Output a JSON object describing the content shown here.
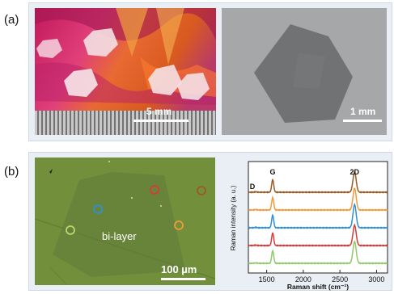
{
  "figure": {
    "panel_a_label": "(a)",
    "panel_b_label": "(b)",
    "photo_left_scale": "5 mm",
    "photo_right_scale": "1 mm",
    "micrograph_label": "bi-layer",
    "micrograph_scale": "100 µm"
  },
  "chart_data": {
    "type": "line",
    "xlabel": "Raman shift (cm⁻¹)",
    "ylabel": "Raman intensity (a. u.)",
    "x_ticks": [
      1500,
      2000,
      2500,
      3000
    ],
    "xlim": [
      1250,
      3150
    ],
    "peak_labels": [
      {
        "text": "D",
        "x": 1350
      },
      {
        "text": "G",
        "x": 1582
      },
      {
        "text": "2D",
        "x": 2700
      }
    ],
    "series": [
      {
        "color": "#9a5a24",
        "G_peak": 1.0,
        "2D_peak": 1.4
      },
      {
        "color": "#f29a3a",
        "G_peak": 1.0,
        "2D_peak": 1.5
      },
      {
        "color": "#2e8fd8",
        "G_peak": 1.0,
        "2D_peak": 1.6
      },
      {
        "color": "#d83a3a",
        "G_peak": 1.0,
        "2D_peak": 1.4
      },
      {
        "color": "#8fc96a",
        "G_peak": 1.0,
        "2D_peak": 1.5
      }
    ]
  },
  "markers": [
    {
      "color": "#d83a3a"
    },
    {
      "color": "#9a5a24"
    },
    {
      "color": "#2e8fd8"
    },
    {
      "color": "#f29a3a"
    },
    {
      "color": "#b8d86a"
    }
  ]
}
